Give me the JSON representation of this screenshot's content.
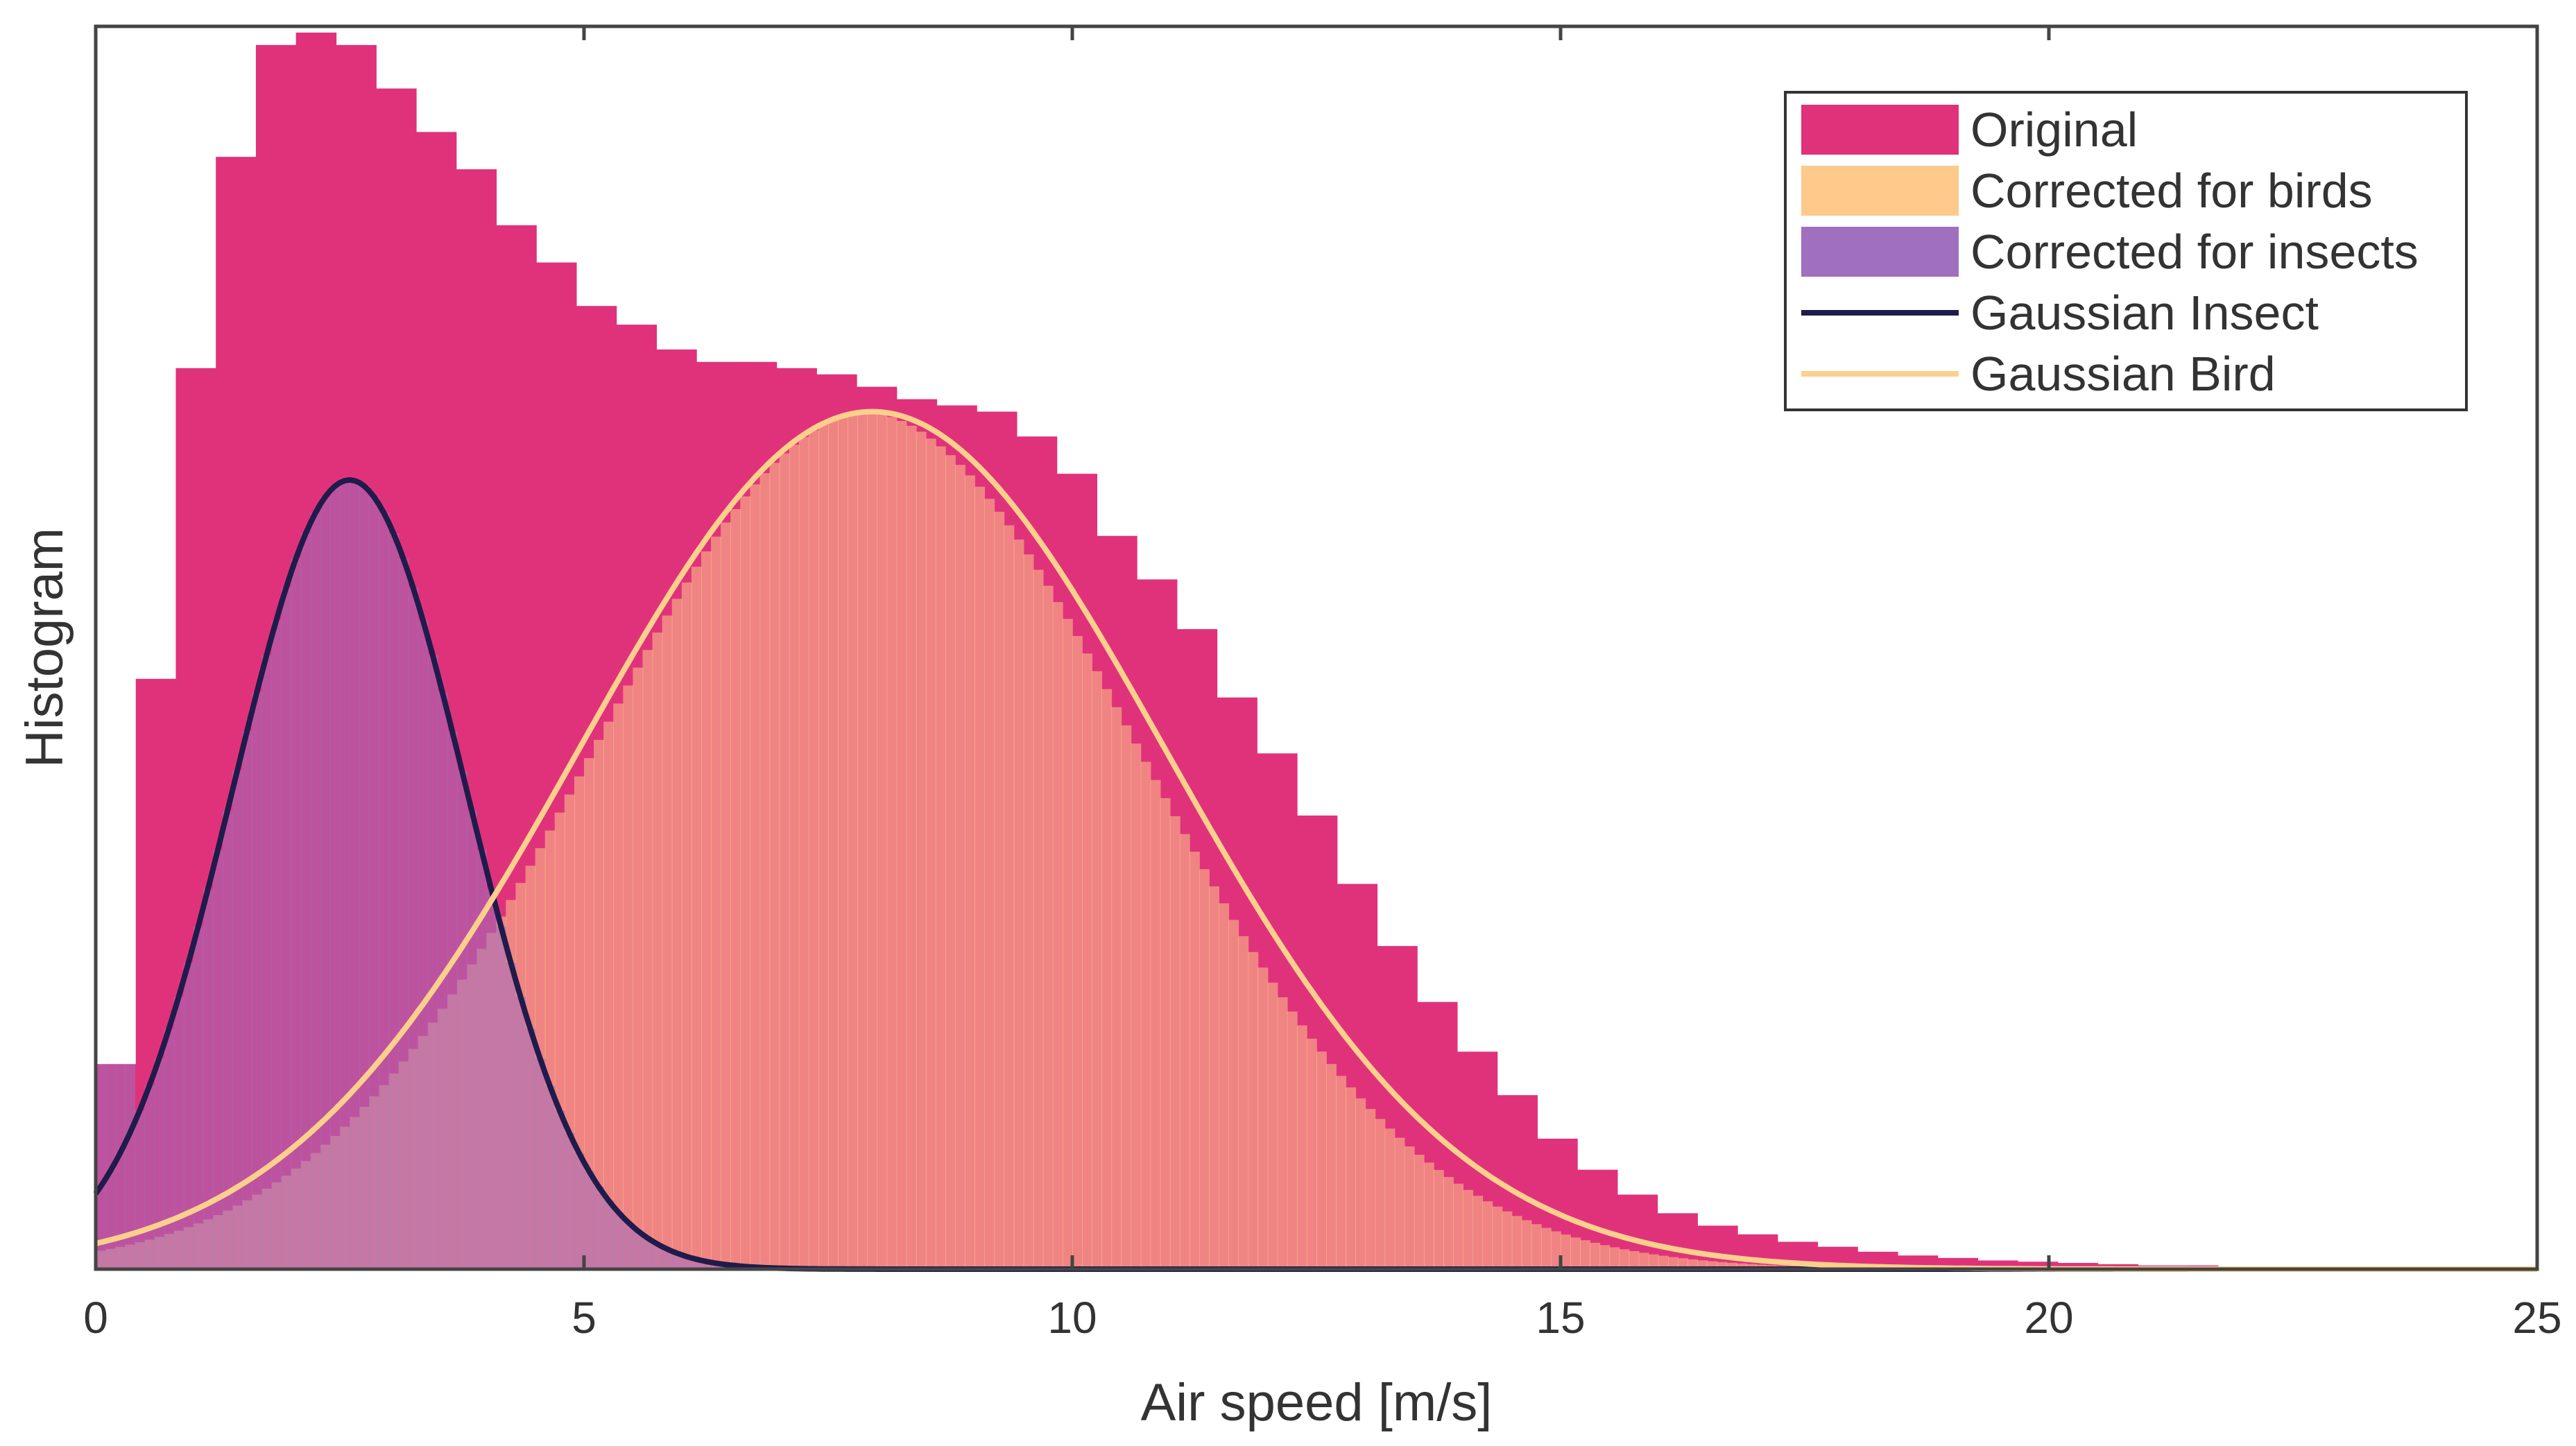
{
  "chart_data": {
    "type": "histogram",
    "title": "",
    "xlabel": "Air speed [m/s]",
    "ylabel": "Histogram",
    "xlim": [
      0,
      25
    ],
    "ylim": [
      0,
      100
    ],
    "xticks": [
      0,
      5,
      10,
      15,
      20,
      25
    ],
    "grid": false,
    "legend_position": "top-right",
    "colors": {
      "original": "#e0327a",
      "corrected_birds": "#fec98a",
      "corrected_insects": "#a06fbd",
      "gaussian_insect": "#1f1b4b",
      "gaussian_bird": "#fcd08c",
      "frame": "#444444"
    },
    "legend": [
      {
        "key": "original",
        "label": "Original",
        "kind": "patch"
      },
      {
        "key": "corrected_birds",
        "label": "Corrected for birds",
        "kind": "patch"
      },
      {
        "key": "corrected_insects",
        "label": "Corrected for insects",
        "kind": "patch"
      },
      {
        "key": "gaussian_insect",
        "label": "Gaussian Insect",
        "kind": "line"
      },
      {
        "key": "gaussian_bird",
        "label": "Gaussian Bird",
        "kind": "line"
      }
    ],
    "series": [
      {
        "name": "Original",
        "kind": "histogram",
        "bin_width": 0.41,
        "x_start": 0.0,
        "values": [
          16.5,
          47.5,
          72.5,
          89.5,
          98.5,
          99.5,
          98.5,
          95.0,
          91.5,
          88.5,
          84.0,
          81.0,
          77.5,
          76.0,
          74.0,
          73.0,
          73.0,
          72.5,
          72.0,
          71.0,
          70.0,
          69.5,
          69.0,
          67.0,
          64.0,
          59.0,
          55.5,
          51.5,
          46.0,
          41.5,
          36.5,
          31.0,
          26.0,
          21.5,
          17.5,
          14.0,
          10.5,
          8.0,
          6.0,
          4.5,
          3.5,
          2.8,
          2.2,
          1.8,
          1.4,
          1.1,
          0.9,
          0.7,
          0.6,
          0.5,
          0.4,
          0.3,
          0.3,
          0.2,
          0.2,
          0.2,
          0.1,
          0.1,
          0.1,
          0.1,
          0.1
        ]
      },
      {
        "name": "Corrected for birds",
        "kind": "histogram",
        "bin_width": 0.1,
        "shape": {
          "model": "gaussian",
          "mu": 7.95,
          "sigma": 2.85,
          "peak": 69.0,
          "tail_shift": 0.12
        }
      },
      {
        "name": "Corrected for insects",
        "kind": "histogram",
        "bin_width": 0.1,
        "shape": {
          "model": "gaussian",
          "mu": 2.6,
          "sigma": 1.2,
          "peak": 63.5,
          "fill_to": 16.5,
          "mixed_with": "Corrected for birds"
        }
      },
      {
        "name": "Gaussian Insect",
        "kind": "line",
        "model": {
          "type": "gaussian",
          "mu": 2.6,
          "sigma": 1.2,
          "peak": 63.5
        }
      },
      {
        "name": "Gaussian Bird",
        "kind": "line",
        "model": {
          "type": "gaussian",
          "mu": 7.95,
          "sigma": 3.0,
          "peak": 69.0
        }
      }
    ]
  }
}
